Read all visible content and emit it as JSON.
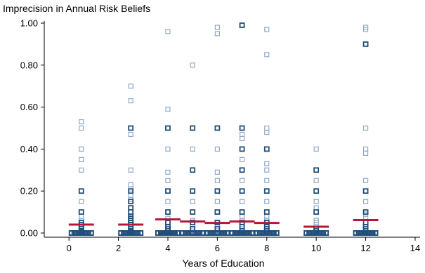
{
  "chart_data": {
    "type": "scatter",
    "title": "",
    "ylabel": "Imprecision in Annual Risk Beliefs",
    "xlabel": "Years of Education",
    "xlim": [
      -1,
      14.2
    ],
    "ylim": [
      -0.02,
      1.01
    ],
    "x_ticks": [
      0,
      2,
      4,
      6,
      8,
      10,
      12,
      14
    ],
    "x_tick_labels": [
      "0",
      "2",
      "4",
      "6",
      "8",
      "10",
      "12",
      "14"
    ],
    "y_ticks": [
      0,
      0.2,
      0.4,
      0.6,
      0.8,
      1.0
    ],
    "y_tick_labels": [
      "0.00",
      "0.20",
      "0.40",
      "0.60",
      "0.80",
      "1.00"
    ],
    "grid": false,
    "colors": {
      "points_light": "#8fa8c8",
      "points_dark": "#1f4e79",
      "mean_marker": "#b5173b"
    },
    "groups": [
      {
        "x": 0.5,
        "mean": 0.04,
        "points": [
          0.53,
          0.5,
          0.4,
          0.35,
          0.3,
          0.2,
          0.15,
          0.1,
          0.08,
          0.06,
          0.05,
          0.04,
          0.03,
          0.02,
          0.01,
          0.0
        ],
        "dense": [
          0.2,
          0.1,
          0.05,
          0.04,
          0.03,
          0.02,
          0.01,
          0.005,
          0.0
        ]
      },
      {
        "x": 2.5,
        "mean": 0.04,
        "points": [
          0.7,
          0.63,
          0.5,
          0.47,
          0.3,
          0.23,
          0.21,
          0.2,
          0.18,
          0.16,
          0.15,
          0.12,
          0.1,
          0.08,
          0.06,
          0.05,
          0.04,
          0.03,
          0.02,
          0.01,
          0.0
        ],
        "dense": [
          0.5,
          0.2,
          0.15,
          0.12,
          0.1,
          0.08,
          0.07,
          0.06,
          0.05,
          0.04,
          0.03,
          0.02,
          0.01,
          0.005,
          0.0
        ]
      },
      {
        "x": 4,
        "mean": 0.065,
        "points": [
          0.96,
          0.59,
          0.5,
          0.4,
          0.29,
          0.25,
          0.2,
          0.15,
          0.1,
          0.07,
          0.05,
          0.03,
          0.01,
          0.0
        ],
        "dense": [
          0.5,
          0.2,
          0.1,
          0.05,
          0.03,
          0.02,
          0.01,
          0.0
        ]
      },
      {
        "x": 5,
        "mean": 0.055,
        "points": [
          0.8,
          0.5,
          0.4,
          0.3,
          0.2,
          0.15,
          0.1,
          0.06,
          0.04,
          0.02,
          0.01,
          0.0
        ],
        "dense": [
          0.5,
          0.3,
          0.2,
          0.1,
          0.05,
          0.02,
          0.0
        ]
      },
      {
        "x": 6,
        "mean": 0.048,
        "points": [
          0.98,
          0.95,
          0.5,
          0.4,
          0.29,
          0.25,
          0.2,
          0.15,
          0.1,
          0.05,
          0.03,
          0.02,
          0.01,
          0.0
        ],
        "dense": [
          0.5,
          0.2,
          0.1,
          0.05,
          0.02,
          0.0
        ]
      },
      {
        "x": 7,
        "mean": 0.055,
        "points": [
          0.99,
          0.5,
          0.47,
          0.45,
          0.4,
          0.35,
          0.3,
          0.25,
          0.2,
          0.15,
          0.1,
          0.08,
          0.06,
          0.05,
          0.03,
          0.02,
          0.01,
          0.0
        ],
        "dense": [
          0.99,
          0.5,
          0.4,
          0.3,
          0.2,
          0.1,
          0.05,
          0.03,
          0.01,
          0.0
        ]
      },
      {
        "x": 8,
        "mean": 0.048,
        "points": [
          0.97,
          0.85,
          0.5,
          0.48,
          0.4,
          0.33,
          0.3,
          0.25,
          0.2,
          0.15,
          0.1,
          0.08,
          0.06,
          0.04,
          0.02,
          0.01,
          0.0
        ],
        "dense": [
          0.4,
          0.2,
          0.1,
          0.05,
          0.03,
          0.02,
          0.01,
          0.0
        ]
      },
      {
        "x": 10,
        "mean": 0.03,
        "points": [
          0.4,
          0.3,
          0.25,
          0.2,
          0.15,
          0.12,
          0.1,
          0.06,
          0.05,
          0.04,
          0.02,
          0.01,
          0.0
        ],
        "dense": [
          0.3,
          0.2,
          0.1,
          0.02,
          0.01,
          0.0
        ]
      },
      {
        "x": 12,
        "mean": 0.062,
        "points": [
          0.98,
          0.97,
          0.9,
          0.5,
          0.4,
          0.38,
          0.25,
          0.2,
          0.15,
          0.1,
          0.09,
          0.07,
          0.05,
          0.03,
          0.02,
          0.01,
          0.0
        ],
        "dense": [
          0.9,
          0.2,
          0.1,
          0.05,
          0.03,
          0.02,
          0.01,
          0.0
        ]
      }
    ]
  }
}
